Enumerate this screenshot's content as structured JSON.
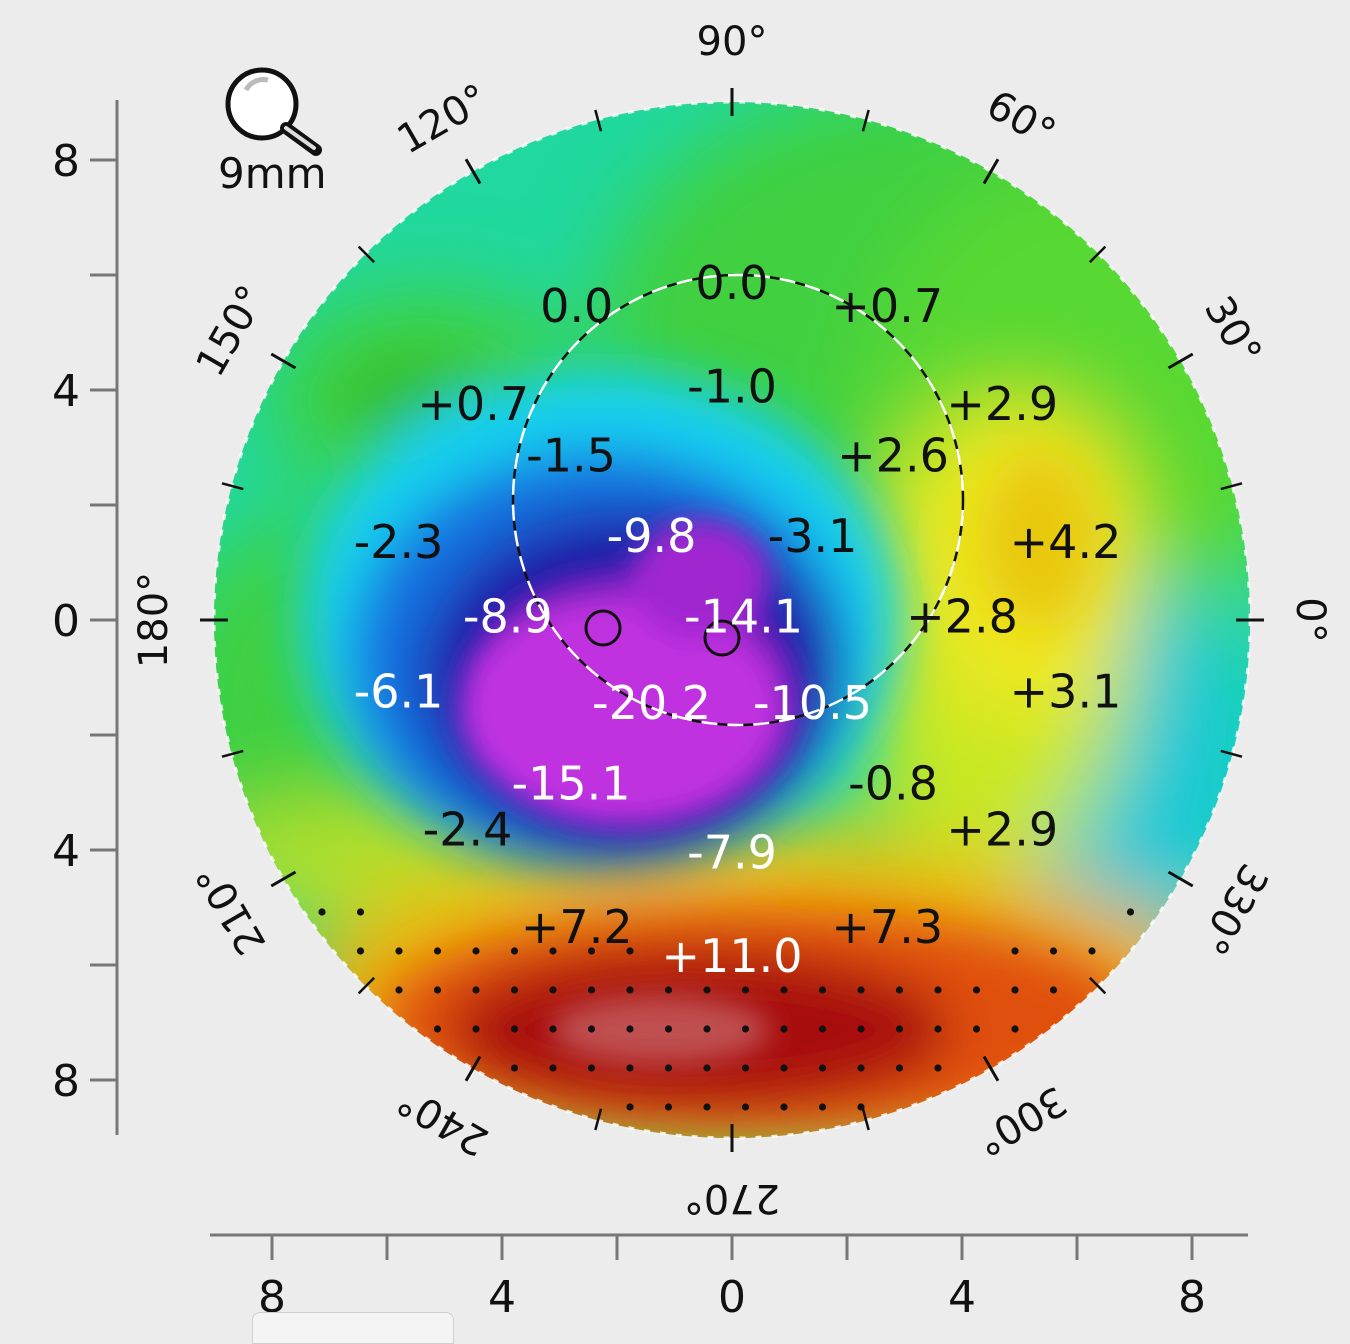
{
  "zoom": {
    "label": "9mm",
    "icon": "magnifier-icon"
  },
  "angle_labels": [
    {
      "text": "90°",
      "angle": 90
    },
    {
      "text": "60°",
      "angle": 60
    },
    {
      "text": "30°",
      "angle": 30
    },
    {
      "text": "0°",
      "angle": 0
    },
    {
      "text": "330°",
      "angle": 330
    },
    {
      "text": "300°",
      "angle": 300
    },
    {
      "text": "270°",
      "angle": 270
    },
    {
      "text": "240°",
      "angle": 240
    },
    {
      "text": "210°",
      "angle": 210
    },
    {
      "text": "180°",
      "angle": 180
    },
    {
      "text": "150°",
      "angle": 150
    },
    {
      "text": "120°",
      "angle": 120
    }
  ],
  "y_axis": {
    "ticks": [
      "8",
      "4",
      "0",
      "4",
      "8"
    ]
  },
  "x_axis": {
    "ticks": [
      "8",
      "4",
      "0",
      "4",
      "8"
    ]
  },
  "map_values": [
    {
      "text": "0.0",
      "x": 0,
      "y": 5.8,
      "color": "#111"
    },
    {
      "text": "0.0",
      "x": -2.7,
      "y": 5.4,
      "color": "#111"
    },
    {
      "text": "+0.7",
      "x": 2.7,
      "y": 5.4,
      "color": "#111"
    },
    {
      "text": "-1.0",
      "x": 0,
      "y": 4.0,
      "color": "#111"
    },
    {
      "text": "+0.7",
      "x": -4.5,
      "y": 3.7,
      "color": "#111"
    },
    {
      "text": "+2.9",
      "x": 4.7,
      "y": 3.7,
      "color": "#111"
    },
    {
      "text": "-1.5",
      "x": -2.8,
      "y": 2.8,
      "color": "#111"
    },
    {
      "text": "+2.6",
      "x": 2.8,
      "y": 2.8,
      "color": "#111"
    },
    {
      "text": "-9.8",
      "x": -1.4,
      "y": 1.4,
      "color": "#fff"
    },
    {
      "text": "-3.1",
      "x": 1.4,
      "y": 1.4,
      "color": "#111"
    },
    {
      "text": "-2.3",
      "x": -5.8,
      "y": 1.3,
      "color": "#111"
    },
    {
      "text": "+4.2",
      "x": 5.8,
      "y": 1.3,
      "color": "#111"
    },
    {
      "text": "-8.9",
      "x": -3.9,
      "y": 0,
      "color": "#fff"
    },
    {
      "text": "-14.1",
      "x": 0.2,
      "y": 0,
      "color": "#fff"
    },
    {
      "text": "+2.8",
      "x": 4.0,
      "y": 0,
      "color": "#111"
    },
    {
      "text": "-6.1",
      "x": -5.8,
      "y": -1.3,
      "color": "#fff"
    },
    {
      "text": "+3.1",
      "x": 5.8,
      "y": -1.3,
      "color": "#111"
    },
    {
      "text": "-20.2",
      "x": -1.4,
      "y": -1.5,
      "color": "#fff"
    },
    {
      "text": "-10.5",
      "x": 1.4,
      "y": -1.5,
      "color": "#fff"
    },
    {
      "text": "-15.1",
      "x": -2.8,
      "y": -2.9,
      "color": "#fff"
    },
    {
      "text": "-0.8",
      "x": 2.8,
      "y": -2.9,
      "color": "#111"
    },
    {
      "text": "-2.4",
      "x": -4.6,
      "y": -3.7,
      "color": "#111"
    },
    {
      "text": "+2.9",
      "x": 4.7,
      "y": -3.7,
      "color": "#111"
    },
    {
      "text": "-7.9",
      "x": 0,
      "y": -4.1,
      "color": "#fff"
    },
    {
      "text": "+7.2",
      "x": -2.7,
      "y": -5.4,
      "color": "#111"
    },
    {
      "text": "+7.3",
      "x": 2.7,
      "y": -5.4,
      "color": "#111"
    },
    {
      "text": "+11.0",
      "x": 0,
      "y": -5.9,
      "color": "#fff"
    }
  ],
  "colors": {
    "background": "#ececec",
    "map_scale": [
      "#c030e0",
      "#7020b8",
      "#1a1aa8",
      "#1570e0",
      "#18d0f0",
      "#18d8a0",
      "#40d040",
      "#a0e020",
      "#f0e820",
      "#f0b010",
      "#e05010",
      "#a81008"
    ]
  }
}
